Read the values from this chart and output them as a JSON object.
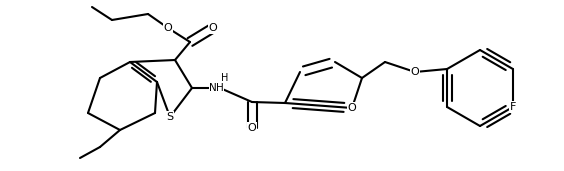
{
  "figsize": [
    5.64,
    1.71
  ],
  "dpi": 100,
  "bg": "#ffffff",
  "lw": 1.5,
  "lw_dbl": 1.5,
  "sep": 0.045,
  "xlim": [
    0,
    5.64
  ],
  "ylim": [
    0,
    1.71
  ]
}
